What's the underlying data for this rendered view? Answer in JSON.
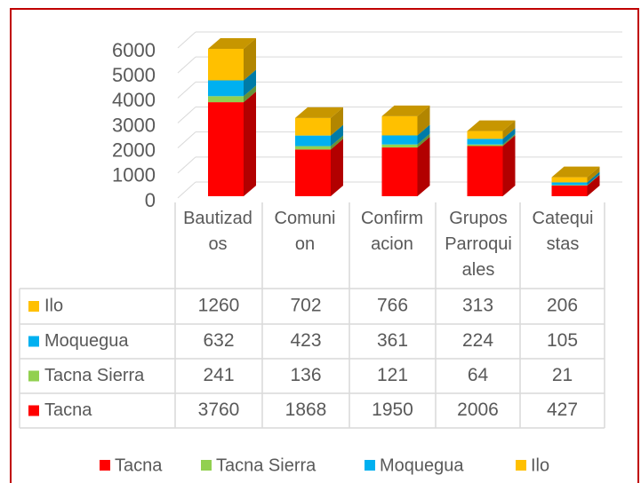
{
  "chart_data": {
    "type": "bar3d_stacked",
    "categories": [
      "Bautizados",
      "Comunion",
      "Confirmacion",
      "Grupos Parroquiales",
      "Catequistas"
    ],
    "series": [
      {
        "name": "Tacna",
        "color": "#ff0000",
        "values": [
          3760,
          1868,
          1950,
          2006,
          427
        ]
      },
      {
        "name": "Tacna Sierra",
        "color": "#92d050",
        "values": [
          241,
          136,
          121,
          64,
          21
        ]
      },
      {
        "name": "Moquegua",
        "color": "#00b0f0",
        "values": [
          632,
          423,
          361,
          224,
          105
        ]
      },
      {
        "name": "Ilo",
        "color": "#ffc000",
        "values": [
          1260,
          702,
          766,
          313,
          206
        ]
      }
    ],
    "ylim": [
      0,
      6000
    ],
    "yticks": [
      0,
      1000,
      2000,
      3000,
      4000,
      5000,
      6000
    ],
    "grid": true,
    "data_table": true,
    "legend": "bottom"
  }
}
